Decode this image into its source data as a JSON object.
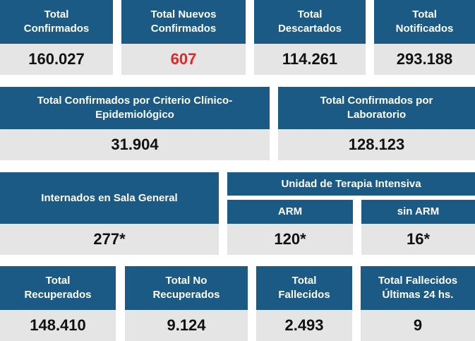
{
  "row1": [
    {
      "l1": "Total",
      "l2": "Confirmados",
      "value": "160.027"
    },
    {
      "l1": "Total Nuevos",
      "l2": "Confirmados",
      "value": "607"
    },
    {
      "l1": "Total",
      "l2": "Descartados",
      "value": "114.261"
    },
    {
      "l1": "Total",
      "l2": "Notificados",
      "value": "293.188"
    }
  ],
  "row2": [
    {
      "l1": "Total Confirmados por Criterio Clínico-",
      "l2": "Epidemiológico",
      "value": "31.904"
    },
    {
      "l1": "Total Confirmados por",
      "l2": "Laboratorio",
      "value": "128.123"
    }
  ],
  "row3": {
    "internados": {
      "label": "Internados en Sala General",
      "value": "277*"
    },
    "uti": {
      "label": "Unidad de Terapia Intensiva",
      "arm": {
        "label": "ARM",
        "value": "120*"
      },
      "sin_arm": {
        "label": "sin ARM",
        "value": "16*"
      }
    }
  },
  "row4": [
    {
      "l1": "Total",
      "l2": "Recuperados",
      "value": "148.410"
    },
    {
      "l1": "Total No",
      "l2": "Recuperados",
      "value": "9.124"
    },
    {
      "l1": "Total",
      "l2": "Fallecidos",
      "value": "2.493"
    },
    {
      "l1": "Total Fallecidos",
      "l2": "Últimas 24 hs.",
      "value": "9"
    }
  ],
  "colors": {
    "header": "#1c5a86",
    "value_bg": "#e5e5e5",
    "highlight": "#e32626"
  }
}
